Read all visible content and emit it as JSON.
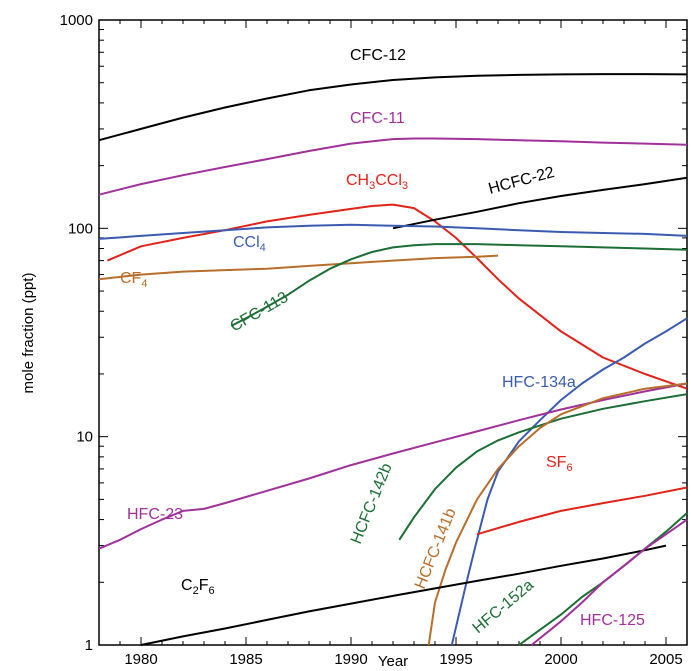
{
  "chart_data": {
    "type": "line",
    "xlabel": "Year",
    "ylabel": "mole fraction (ppt)",
    "xlim": [
      1978,
      2006
    ],
    "ylim": [
      1,
      1000
    ],
    "yscale": "log",
    "x_ticks": [
      1980,
      1985,
      1990,
      1995,
      2000,
      2005
    ],
    "y_ticks": [
      1,
      10,
      100,
      1000
    ],
    "grid": false,
    "colors": {
      "black": "#000000",
      "purple": "#a0309a",
      "red": "#e2231a",
      "blue": "#3a5bb0",
      "green": "#1c6e35",
      "brown": "#b86e2a"
    },
    "series": [
      {
        "name": "CFC-12",
        "name_main": "CFC-12",
        "name_sub": "",
        "name_rest": "",
        "color": "#000000",
        "x": [
          1978,
          1980,
          1982,
          1984,
          1986,
          1988,
          1990,
          1992,
          1994,
          1996,
          1998,
          2000,
          2002,
          2004,
          2006
        ],
        "y": [
          265,
          300,
          340,
          380,
          420,
          460,
          490,
          515,
          530,
          540,
          545,
          548,
          550,
          550,
          548
        ]
      },
      {
        "name": "CFC-11",
        "name_main": "CFC-11",
        "name_sub": "",
        "name_rest": "",
        "color": "#a0309a",
        "x": [
          1978,
          1980,
          1982,
          1984,
          1986,
          1988,
          1990,
          1992,
          1993,
          1994,
          1996,
          1998,
          2000,
          2002,
          2004,
          2006
        ],
        "y": [
          145,
          163,
          180,
          197,
          215,
          235,
          255,
          268,
          270,
          270,
          268,
          265,
          262,
          258,
          255,
          252
        ]
      },
      {
        "name": "CH3CCl3",
        "name_main": "CH",
        "name_sub": "3",
        "name_rest": "CCl",
        "name_sub2": "3",
        "color": "#e2231a",
        "x": [
          1978.4,
          1980,
          1982,
          1984,
          1986,
          1988,
          1990,
          1991,
          1992,
          1993,
          1994,
          1995,
          1996,
          1997,
          1998,
          2000,
          2002,
          2004,
          2006
        ],
        "y": [
          70,
          82,
          90,
          98,
          108,
          116,
          124,
          128,
          130,
          125,
          108,
          90,
          72,
          57,
          46,
          32,
          24,
          20,
          17
        ]
      },
      {
        "name": "HCFC-22",
        "name_main": "HCFC-22",
        "name_sub": "",
        "name_rest": "",
        "color": "#000000",
        "x": [
          1992,
          1994,
          1996,
          1998,
          2000,
          2002,
          2004,
          2006
        ],
        "y": [
          100,
          110,
          120,
          132,
          143,
          153,
          163,
          175
        ]
      },
      {
        "name": "CCl4",
        "name_main": "CCl",
        "name_sub": "4",
        "name_rest": "",
        "color": "#3a5bb0",
        "x": [
          1978,
          1980,
          1982,
          1984,
          1986,
          1988,
          1990,
          1992,
          1994,
          1996,
          1998,
          2000,
          2002,
          2004,
          2006
        ],
        "y": [
          89,
          92,
          95,
          98,
          101,
          103,
          104,
          103,
          102,
          100,
          98,
          96,
          95,
          94,
          92
        ]
      },
      {
        "name": "CF4",
        "name_main": "CF",
        "name_sub": "4",
        "name_rest": "",
        "color": "#b86e2a",
        "x": [
          1978,
          1980,
          1982,
          1984,
          1986,
          1988,
          1990,
          1992,
          1994,
          1996,
          1997
        ],
        "y": [
          57,
          60,
          62,
          63,
          64,
          66,
          68,
          70,
          72,
          73,
          74
        ]
      },
      {
        "name": "CFC-113",
        "name_main": "CFC-113",
        "name_sub": "",
        "name_rest": "",
        "color": "#1c6e35",
        "x": [
          1984.3,
          1985,
          1986,
          1987,
          1988,
          1989,
          1990,
          1991,
          1992,
          1993,
          1994,
          1996,
          1998,
          2000,
          2002,
          2004,
          2006
        ],
        "y": [
          34,
          37,
          42,
          48,
          56,
          64,
          71,
          77,
          81,
          83,
          84,
          84,
          83,
          82,
          81,
          80,
          79
        ]
      },
      {
        "name": "HFC-134a",
        "name_main": "HFC-134a",
        "name_sub": "",
        "name_rest": "",
        "color": "#3a5bb0",
        "x": [
          1994.8,
          1995.5,
          1996,
          1996.5,
          1997,
          1998,
          1999,
          2000,
          2001,
          2002,
          2003,
          2004,
          2005,
          2006
        ],
        "y": [
          1,
          2,
          3.2,
          5,
          6.8,
          9.5,
          12,
          15,
          18,
          21,
          24,
          28,
          32,
          37
        ]
      },
      {
        "name": "HFC-23",
        "name_main": "HFC-23",
        "name_sub": "",
        "name_rest": "",
        "color": "#a0309a",
        "x": [
          1978,
          1979,
          1980,
          1981,
          1982,
          1983,
          1984,
          1986,
          1988,
          1990,
          1992,
          1994,
          1996,
          1998,
          2000,
          2002,
          2004,
          2006
        ],
        "y": [
          2.9,
          3.2,
          3.6,
          4.0,
          4.4,
          4.5,
          4.8,
          5.5,
          6.3,
          7.3,
          8.3,
          9.4,
          10.6,
          12.0,
          13.5,
          15.0,
          16.5,
          18
        ]
      },
      {
        "name": "HCFC-142b",
        "name_main": "HCFC-142b",
        "name_sub": "",
        "name_rest": "",
        "color": "#1c6e35",
        "x": [
          1992.3,
          1993,
          1994,
          1995,
          1996,
          1997,
          1998,
          2000,
          2002,
          2004,
          2006
        ],
        "y": [
          3.2,
          4.1,
          5.6,
          7.1,
          8.5,
          9.6,
          10.5,
          12.2,
          13.6,
          14.8,
          16
        ]
      },
      {
        "name": "HCFC-141b",
        "name_main": "HCFC-141b",
        "name_sub": "",
        "name_rest": "",
        "color": "#b86e2a",
        "x": [
          1993.7,
          1994,
          1994.5,
          1995,
          1996,
          1997,
          1998,
          1999,
          2000,
          2002,
          2004,
          2006
        ],
        "y": [
          1,
          1.6,
          2.3,
          3.1,
          5,
          7,
          9,
          11,
          12.8,
          15.3,
          17,
          18
        ]
      },
      {
        "name": "SF6",
        "name_main": "SF",
        "name_sub": "6",
        "name_rest": "",
        "color": "#e2231a",
        "x": [
          1996,
          1998,
          2000,
          2002,
          2004,
          2006
        ],
        "y": [
          3.4,
          3.9,
          4.4,
          4.8,
          5.2,
          5.7
        ]
      },
      {
        "name": "C2F6",
        "name_main": "C",
        "name_sub": "2",
        "name_rest": "F",
        "name_sub2": "6",
        "color": "#000000",
        "x": [
          1980,
          1982,
          1984,
          1986,
          1988,
          1990,
          1992,
          1994,
          1996,
          1998,
          2000,
          2002,
          2004,
          2005
        ],
        "y": [
          1.0,
          1.1,
          1.2,
          1.32,
          1.45,
          1.58,
          1.72,
          1.87,
          2.03,
          2.2,
          2.4,
          2.6,
          2.85,
          3.0
        ]
      },
      {
        "name": "HFC-152a",
        "name_main": "HFC-152a",
        "name_sub": "",
        "name_rest": "",
        "color": "#1c6e35",
        "x": [
          1998,
          2000,
          2001,
          2002,
          2003,
          2004,
          2005,
          2006
        ],
        "y": [
          1.0,
          1.4,
          1.7,
          2.0,
          2.4,
          2.9,
          3.5,
          4.3
        ]
      },
      {
        "name": "HFC-125",
        "name_main": "HFC-125",
        "name_sub": "",
        "name_rest": "",
        "color": "#a0309a",
        "x": [
          1998.6,
          2000,
          2001,
          2002,
          2003,
          2004,
          2005,
          2006
        ],
        "y": [
          1.0,
          1.3,
          1.6,
          2.0,
          2.4,
          2.9,
          3.4,
          4.0
        ]
      }
    ]
  }
}
